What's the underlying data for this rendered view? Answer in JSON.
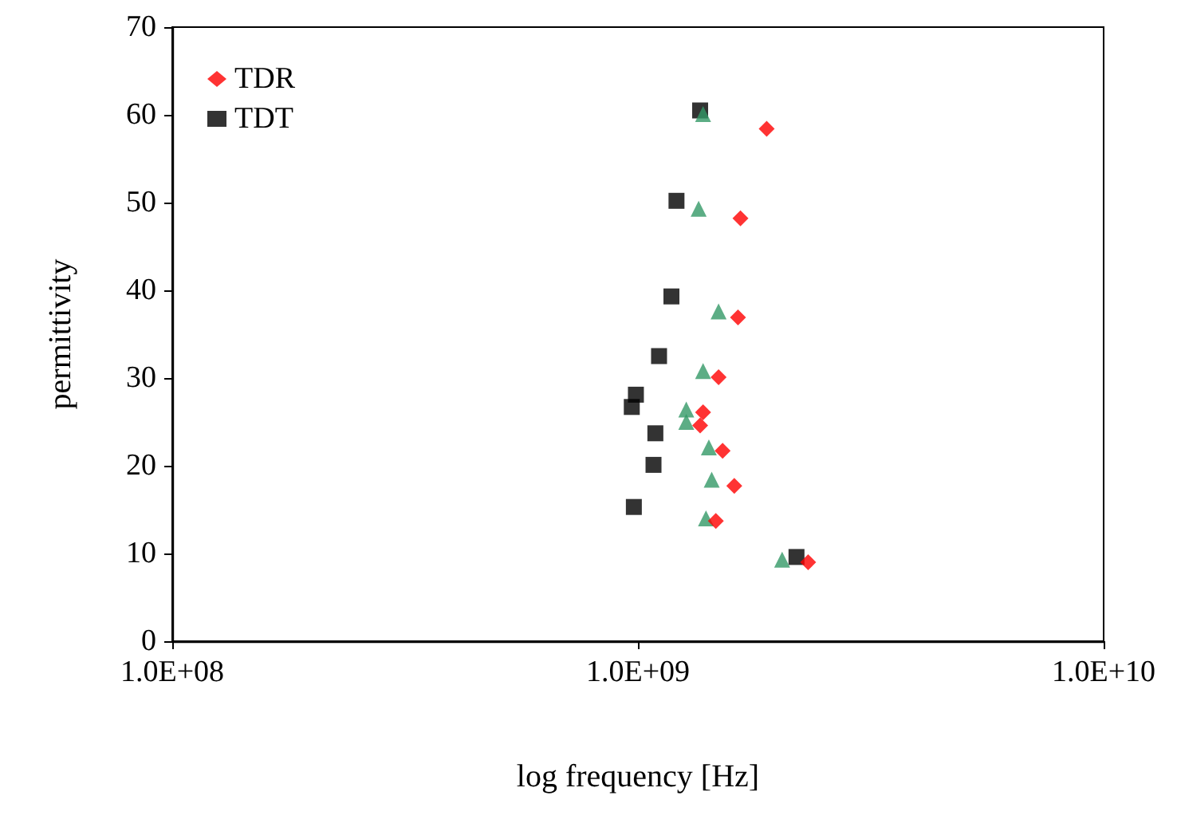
{
  "chart_data": {
    "type": "scatter",
    "xlabel": "log frequency [Hz]",
    "ylabel": "permittivity",
    "log": "x",
    "grid": false,
    "legend": "top left",
    "xlim": [
      100000000,
      10000000000
    ],
    "xticks": [
      {
        "value": 100000000,
        "label": "1.0E+08"
      },
      {
        "value": 1000000000,
        "label": "1.0E+09"
      },
      {
        "value": 10000000000,
        "label": "1.0E+10"
      }
    ],
    "ylim": [
      0,
      70
    ],
    "yticks": [
      0,
      10,
      20,
      30,
      40,
      50,
      60,
      70
    ],
    "series": [
      {
        "name": "TDR",
        "color": "#ff0000",
        "marker": "diamond",
        "x": [
          1890000000,
          1660000000,
          1640000000,
          1490000000,
          1380000000,
          1360000000,
          1520000000,
          1610000000,
          1470000000,
          2320000000
        ],
        "values": [
          58.4,
          48.2,
          36.9,
          30.1,
          26.1,
          24.6,
          21.7,
          17.7,
          13.7,
          9.0
        ]
      },
      {
        "color": "#339966",
        "marker": "triangle",
        "x": [
          1380000000,
          1350000000,
          1490000000,
          1380000000,
          1270000000,
          1270000000,
          1420000000,
          1440000000,
          1400000000,
          2040000000
        ],
        "values": [
          60.1,
          49.3,
          37.6,
          30.8,
          26.4,
          25.0,
          22.1,
          18.4,
          14.0,
          9.3
        ]
      },
      {
        "name": "TDT",
        "color": "#000000",
        "marker": "square",
        "x": [
          1360000000,
          1210000000,
          1180000000,
          1110000000,
          990000000,
          970000000,
          1090000000,
          1080000000,
          980000000,
          2190000000
        ],
        "values": [
          60.5,
          50.2,
          39.3,
          32.5,
          28.1,
          26.7,
          23.7,
          20.1,
          15.3,
          9.6
        ]
      }
    ]
  }
}
